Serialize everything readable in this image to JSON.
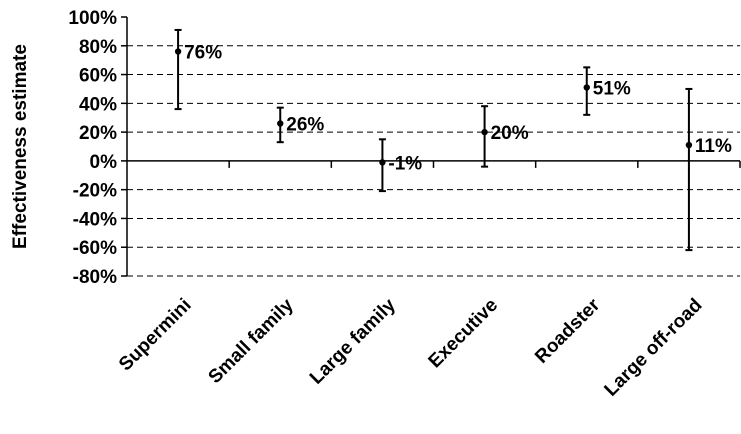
{
  "chart_data": {
    "type": "scatter",
    "title": "",
    "xlabel": "",
    "ylabel": "Effectiveness estimate",
    "categories": [
      "Supermini",
      "Small family",
      "Large family",
      "Executive",
      "Roadster",
      "Large off-road"
    ],
    "values": [
      76,
      26,
      -1,
      20,
      51,
      11
    ],
    "error_low": [
      36,
      13,
      -21,
      -4,
      32,
      -62
    ],
    "error_high": [
      91,
      37,
      15,
      38,
      65,
      50
    ],
    "data_labels": [
      "76%",
      "26%",
      "-1%",
      "20%",
      "51%",
      "11%"
    ],
    "ylim": [
      -80,
      100
    ],
    "yticks": [
      -80,
      -60,
      -40,
      -20,
      0,
      20,
      40,
      60,
      80,
      100
    ],
    "ytick_labels": [
      "-80%",
      "-60%",
      "-40%",
      "-20%",
      "0%",
      "20%",
      "40%",
      "60%",
      "80%",
      "100%"
    ],
    "grid": "dashed horizontal",
    "legend": "none"
  }
}
